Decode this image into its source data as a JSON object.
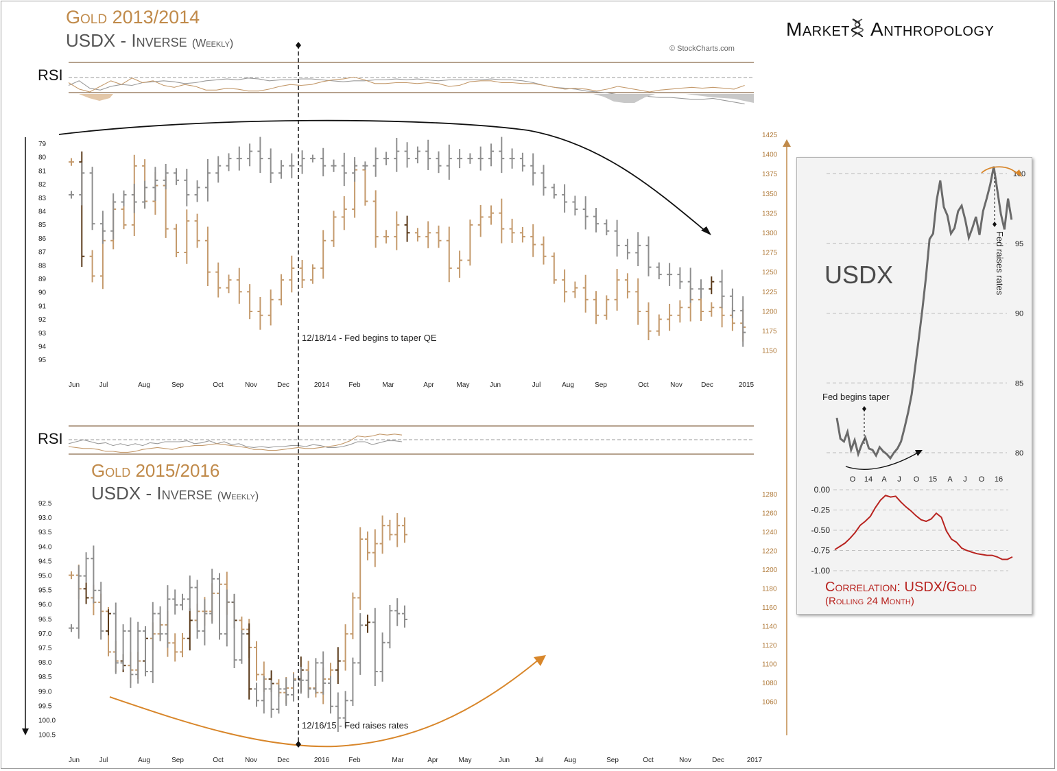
{
  "brand": {
    "left": "Market",
    "right": "Anthropology"
  },
  "credit": "© StockCharts.com",
  "top_panel": {
    "title_gold": "Gold 2013/2014",
    "title_usdx": "USDX - Inverse",
    "title_weekly": "(Weekly)",
    "rsi_label": "RSI",
    "left_axis_ticks": [
      "79",
      "80",
      "81",
      "82",
      "83",
      "84",
      "85",
      "86",
      "87",
      "88",
      "89",
      "90",
      "91",
      "92",
      "93",
      "94",
      "95"
    ],
    "right_axis_ticks": [
      "1425",
      "1400",
      "1375",
      "1350",
      "1325",
      "1300",
      "1275",
      "1250",
      "1225",
      "1200",
      "1175",
      "1150"
    ],
    "month_labels": [
      "Jun",
      "Jul",
      "Aug",
      "Sep",
      "Oct",
      "Nov",
      "Dec",
      "2014",
      "Feb",
      "Mar",
      "Apr",
      "May",
      "Jun",
      "Jul",
      "Aug",
      "Sep",
      "Oct",
      "Nov",
      "Dec",
      "2015"
    ],
    "annotation": "12/18/14 - Fed begins to taper QE"
  },
  "bottom_panel": {
    "title_gold": "Gold 2015/2016",
    "title_usdx": "USDX - Inverse",
    "title_weekly": "(Weekly)",
    "rsi_label": "RSI",
    "left_axis_ticks": [
      "92.5",
      "93.0",
      "93.5",
      "94.0",
      "94.5",
      "95.0",
      "95.5",
      "96.0",
      "96.5",
      "97.0",
      "97.5",
      "98.0",
      "98.5",
      "99.0",
      "99.5",
      "100.0",
      "100.5"
    ],
    "right_axis_ticks": [
      "1280",
      "1260",
      "1240",
      "1220",
      "1200",
      "1180",
      "1160",
      "1140",
      "1120",
      "1100",
      "1080",
      "1060"
    ],
    "month_labels": [
      "Jun",
      "Jul",
      "Aug",
      "Sep",
      "Oct",
      "Nov",
      "Dec",
      "2016",
      "Feb",
      "Mar",
      "Apr",
      "May",
      "Jun",
      "Jul",
      "Aug",
      "Sep",
      "Oct",
      "Nov",
      "Dec",
      "2017"
    ],
    "annotation": "12/16/15 - Fed raises rates"
  },
  "inset": {
    "title": "USDX",
    "y_ticks": [
      "100",
      "95",
      "90",
      "85",
      "80"
    ],
    "x_ticks": [
      "O",
      "14",
      "A",
      "J",
      "O",
      "15",
      "A",
      "J",
      "O",
      "16"
    ],
    "annotation_taper": "Fed begins taper",
    "annotation_rates": "Fed raises rates",
    "corr_ticks": [
      "0.00",
      "-0.25",
      "-0.50",
      "-0.75",
      "-1.00"
    ],
    "corr_title": "Correlation: USDX/Gold",
    "corr_subtitle": "(Rolling 24 Month)"
  },
  "colors": {
    "gold": "#c49a6c",
    "gold_dark": "#5a3a1a",
    "usdx": "#8e8e8e",
    "corr": "#b8231f",
    "orange_arrow": "#d8862a"
  },
  "chart_data": [
    {
      "type": "bar",
      "name": "top",
      "kind": "ohlc-overlay",
      "x_range": [
        "2013-06",
        "2015-01"
      ],
      "gold_ylim": [
        1125,
        1425
      ],
      "usdx_inverse_ylim": [
        79,
        95
      ],
      "usdx_axis_note": "inverted",
      "gold_close": [
        1390,
        1270,
        1245,
        1290,
        1330,
        1310,
        1385,
        1340,
        1360,
        1305,
        1275,
        1315,
        1290,
        1250,
        1230,
        1240,
        1225,
        1200,
        1195,
        1215,
        1240,
        1255,
        1240,
        1255,
        1290,
        1320,
        1330,
        1380,
        1340,
        1295,
        1295,
        1310,
        1300,
        1295,
        1300,
        1290,
        1255,
        1265,
        1310,
        1320,
        1325,
        1305,
        1300,
        1295,
        1285,
        1270,
        1240,
        1225,
        1230,
        1215,
        1195,
        1215,
        1240,
        1225,
        1200,
        1175,
        1190,
        1195,
        1205,
        1215,
        1200,
        1205,
        1195,
        1185,
        1180
      ],
      "usdx_close": [
        82.5,
        81.0,
        84.5,
        85.0,
        83.0,
        82.5,
        83.0,
        82.0,
        81.5,
        81.0,
        81.5,
        82.5,
        82.0,
        81.0,
        80.5,
        80.0,
        80.0,
        79.5,
        80.0,
        81.0,
        80.5,
        80.5,
        80.0,
        80.0,
        80.5,
        80.5,
        81.0,
        80.5,
        80.5,
        80.0,
        80.0,
        79.5,
        80.0,
        79.5,
        80.0,
        80.5,
        80.0,
        80.0,
        80.0,
        80.0,
        79.5,
        80.0,
        80.0,
        80.5,
        81.0,
        82.0,
        82.5,
        83.0,
        83.5,
        84.0,
        84.5,
        85.0,
        86.0,
        86.5,
        86.0,
        87.5,
        88.0,
        88.0,
        88.5,
        89.0,
        89.0,
        88.5,
        89.5,
        90.5,
        92.0
      ],
      "rsi_gold": [
        50,
        43,
        40,
        46,
        52,
        48,
        55,
        50,
        52,
        47,
        45,
        48,
        46,
        42,
        42,
        44,
        43,
        41,
        41,
        43,
        46,
        48,
        47,
        48,
        51,
        53,
        54,
        56,
        53,
        49,
        49,
        50,
        50,
        49,
        50,
        49,
        46,
        47,
        51,
        52,
        52,
        50,
        50,
        49,
        49,
        47,
        45,
        43,
        44,
        43,
        41,
        43,
        46,
        44,
        42,
        40,
        42,
        43,
        44,
        45,
        44,
        45,
        44,
        43,
        47
      ],
      "rsi_usdx": [
        47,
        52,
        44,
        42,
        46,
        48,
        47,
        50,
        51,
        52,
        51,
        49,
        50,
        52,
        53,
        54,
        53,
        55,
        54,
        52,
        53,
        53,
        54,
        54,
        53,
        52,
        51,
        52,
        52,
        53,
        53,
        54,
        53,
        54,
        53,
        52,
        53,
        53,
        53,
        53,
        54,
        53,
        53,
        52,
        50,
        47,
        45,
        44,
        43,
        41,
        40,
        39,
        37,
        36,
        37,
        35,
        34,
        34,
        33,
        32,
        32,
        33,
        31,
        29,
        27
      ]
    },
    {
      "type": "bar",
      "name": "bottom",
      "kind": "ohlc-overlay",
      "x_range": [
        "2015-06",
        "2017-01"
      ],
      "gold_ylim": [
        1040,
        1290
      ],
      "usdx_inverse_ylim": [
        92.5,
        100.5
      ],
      "usdx_axis_note": "inverted",
      "gold_close": [
        1190,
        1175,
        1165,
        1160,
        1150,
        1105,
        1095,
        1090,
        1085,
        1095,
        1120,
        1125,
        1135,
        1115,
        1105,
        1120,
        1140,
        1150,
        1150,
        1170,
        1180,
        1160,
        1140,
        1130,
        1110,
        1080,
        1075,
        1070,
        1060,
        1065,
        1075,
        1085,
        1065,
        1060,
        1075,
        1085,
        1095,
        1125,
        1165,
        1230,
        1215,
        1225,
        1245,
        1235,
        1245,
        1235
      ],
      "usdx_close": [
        96.8,
        95.0,
        94.4,
        95.5,
        96.9,
        96.3,
        98.0,
        96.9,
        98.4,
        96.9,
        98.3,
        96.3,
        97.0,
        95.8,
        96.0,
        95.8,
        95.4,
        96.9,
        96.3,
        95.1,
        97.0,
        95.9,
        97.9,
        97.0,
        98.9,
        99.3,
        98.9,
        99.6,
        98.9,
        99.1,
        98.6,
        98.6,
        98.9,
        98.0,
        98.7,
        99.5,
        99.9,
        99.3,
        98.0,
        96.7,
        96.6,
        98.3,
        97.3,
        96.2,
        96.3,
        96.5
      ],
      "rsi_gold": [
        45,
        44,
        43,
        43,
        42,
        40,
        40,
        39,
        39,
        40,
        42,
        43,
        44,
        43,
        42,
        44,
        45,
        46,
        46,
        47,
        48,
        47,
        46,
        45,
        44,
        42,
        42,
        41,
        41,
        42,
        43,
        44,
        43,
        43,
        44,
        45,
        46,
        48,
        51,
        56,
        55,
        56,
        58,
        57,
        58,
        57
      ],
      "rsi_usdx": [
        48,
        50,
        52,
        50,
        48,
        49,
        46,
        48,
        46,
        48,
        46,
        49,
        48,
        50,
        50,
        50,
        51,
        48,
        49,
        51,
        48,
        50,
        47,
        48,
        45,
        44,
        45,
        44,
        45,
        45,
        46,
        46,
        45,
        47,
        46,
        44,
        44,
        45,
        47,
        50,
        50,
        47,
        49,
        51,
        51,
        50
      ]
    },
    {
      "type": "line",
      "name": "inset-usdx",
      "x_ticks": [
        "O",
        "14",
        "A",
        "J",
        "O",
        "15",
        "A",
        "J",
        "O",
        "16"
      ],
      "ylim": [
        78,
        101
      ],
      "values": [
        82.5,
        81.0,
        80.8,
        81.5,
        80.2,
        80.9,
        79.9,
        80.6,
        81.1,
        80.3,
        80.2,
        79.8,
        80.4,
        80.1,
        79.9,
        79.6,
        80.0,
        80.3,
        80.8,
        81.8,
        82.9,
        84.2,
        86.2,
        88.2,
        90.3,
        92.6,
        95.3,
        95.7,
        98.1,
        99.5,
        97.6,
        97.0,
        95.7,
        96.1,
        97.3,
        97.7,
        96.7,
        95.4,
        96.1,
        96.9,
        95.6,
        97.3,
        98.2,
        99.2,
        100.5,
        98.8,
        97.1,
        96.0,
        98.2,
        96.7
      ]
    },
    {
      "type": "line",
      "name": "inset-correlation",
      "ylim": [
        -1.0,
        0.0
      ],
      "values": [
        -0.74,
        -0.7,
        -0.66,
        -0.6,
        -0.53,
        -0.44,
        -0.39,
        -0.33,
        -0.22,
        -0.13,
        -0.07,
        -0.09,
        -0.08,
        -0.15,
        -0.21,
        -0.26,
        -0.32,
        -0.37,
        -0.39,
        -0.36,
        -0.29,
        -0.34,
        -0.51,
        -0.61,
        -0.65,
        -0.72,
        -0.75,
        -0.77,
        -0.79,
        -0.8,
        -0.81,
        -0.81,
        -0.83,
        -0.86,
        -0.86,
        -0.83
      ]
    }
  ]
}
